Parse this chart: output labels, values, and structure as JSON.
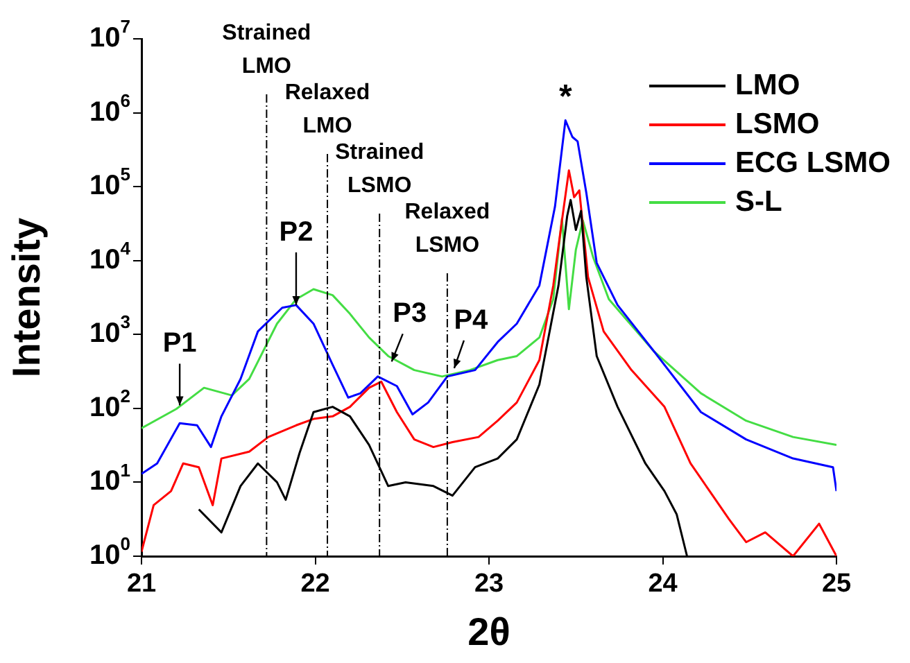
{
  "chart_data": {
    "type": "line",
    "xlabel": "2θ",
    "ylabel": "Intensity",
    "log": true,
    "marker": "none",
    "legend": "top right",
    "xlim": [
      21,
      25
    ],
    "xticks": [
      21,
      22,
      23,
      24,
      25
    ],
    "ylim": [
      1,
      10000000
    ],
    "yticks": [
      {
        "value": 1,
        "label": "10$^{0}$"
      },
      {
        "value": 10,
        "label": "10$^{1}$"
      },
      {
        "value": 100,
        "label": "10$^{2}$"
      },
      {
        "value": 1000,
        "label": "10$^{3}$"
      },
      {
        "value": 10000,
        "label": "10$^{4}$"
      },
      {
        "value": 100000,
        "label": "10$^{5}$"
      },
      {
        "value": 1000000,
        "label": "10$^{6}$"
      },
      {
        "value": 10000000,
        "label": "10$^{7}$"
      }
    ],
    "series": [
      {
        "name": "LMO",
        "color": "#000000",
        "x": [
          21.33,
          21.46,
          21.57,
          21.67,
          21.78,
          21.83,
          21.91,
          21.99,
          22.1,
          22.2,
          22.31,
          22.42,
          22.52,
          22.68,
          22.79,
          22.92,
          23.05,
          23.16,
          23.29,
          23.4,
          23.45,
          23.47,
          23.5,
          23.53,
          23.56,
          23.62,
          23.74,
          23.9,
          24.01,
          24.08,
          24.14
        ],
        "values": [
          4.3,
          2.1,
          8.9,
          18,
          10,
          5.8,
          25,
          89,
          105,
          78,
          32,
          8.9,
          10,
          8.9,
          6.6,
          16,
          21,
          38,
          210,
          4600,
          40000,
          66000,
          26000,
          47000,
          6000,
          510,
          105,
          18,
          7.6,
          3.7,
          1
        ]
      },
      {
        "name": "LSMO",
        "color": "#ff0000",
        "x": [
          21,
          21.07,
          21.17,
          21.24,
          21.33,
          21.41,
          21.46,
          21.62,
          21.73,
          21.89,
          21.99,
          22.1,
          22.2,
          22.31,
          22.38,
          22.47,
          22.57,
          22.68,
          22.79,
          22.94,
          23.05,
          23.16,
          23.29,
          23.37,
          23.42,
          23.46,
          23.49,
          23.52,
          23.57,
          23.66,
          23.82,
          24.01,
          24.16,
          24.27,
          24.38,
          24.48,
          24.59,
          24.75,
          24.9,
          25
        ],
        "values": [
          1.15,
          4.9,
          7.6,
          18,
          16,
          4.9,
          21,
          26,
          41,
          59,
          72,
          78,
          105,
          190,
          230,
          89,
          38,
          30,
          35,
          41,
          68,
          120,
          450,
          4600,
          35000,
          166000,
          72000,
          89000,
          6000,
          1100,
          330,
          105,
          18,
          7.6,
          3.2,
          1.55,
          2.1,
          1,
          2.75,
          1
        ]
      },
      {
        "name": "ECG LSMO",
        "color": "#0000ff",
        "x": [
          21,
          21.09,
          21.22,
          21.32,
          21.4,
          21.46,
          21.57,
          21.67,
          21.81,
          21.89,
          21.99,
          22.1,
          22.19,
          22.26,
          22.36,
          22.47,
          22.56,
          22.65,
          22.76,
          22.92,
          23.05,
          23.16,
          23.29,
          23.38,
          23.44,
          23.48,
          23.51,
          23.56,
          23.62,
          23.74,
          23.95,
          24.22,
          24.48,
          24.75,
          24.98,
          25
        ],
        "values": [
          13,
          18,
          63,
          59,
          30,
          78,
          250,
          1100,
          2300,
          2500,
          1400,
          390,
          140,
          160,
          270,
          200,
          83,
          120,
          270,
          330,
          790,
          1400,
          4600,
          54000,
          790000,
          470000,
          410000,
          83000,
          9300,
          2500,
          590,
          89,
          38,
          21,
          16,
          7.6
        ]
      },
      {
        "name": "S-L",
        "color": "#44dd44",
        "x": [
          21,
          21.2,
          21.36,
          21.52,
          21.62,
          21.78,
          21.89,
          21.99,
          22.1,
          22.2,
          22.31,
          22.42,
          22.57,
          22.73,
          22.89,
          23.05,
          23.16,
          23.29,
          23.37,
          23.42,
          23.46,
          23.5,
          23.54,
          23.6,
          23.69,
          23.95,
          24.22,
          24.48,
          24.75,
          25
        ],
        "values": [
          54,
          98,
          190,
          150,
          250,
          1400,
          3000,
          4100,
          3400,
          1900,
          910,
          510,
          330,
          270,
          330,
          450,
          510,
          910,
          3000,
          37000,
          2200,
          14000,
          35000,
          11000,
          3000,
          590,
          160,
          68,
          41,
          32
        ]
      }
    ],
    "ref_lines": [
      {
        "axis": "x",
        "value": 21.72,
        "label": "Strained LMO",
        "line_style": "dashed"
      },
      {
        "axis": "x",
        "value": 22.07,
        "label": "Relaxed LMO",
        "line_style": "dashed"
      },
      {
        "axis": "x",
        "value": 22.37,
        "label": "Strained LSMO",
        "line_style": "dashed"
      },
      {
        "axis": "x",
        "value": 22.76,
        "label": "Relaxed LSMO",
        "line_style": "dashed"
      }
    ],
    "annotations": [
      {
        "text": "P1",
        "x": 21.22,
        "y": 110
      },
      {
        "text": "P2",
        "x": 21.89,
        "y": 2500
      },
      {
        "text": "P3",
        "x": 22.44,
        "y": 430
      },
      {
        "text": "P4",
        "x": 22.8,
        "y": 350
      },
      {
        "text": "*",
        "x": 23.44,
        "y": 790000
      }
    ]
  }
}
